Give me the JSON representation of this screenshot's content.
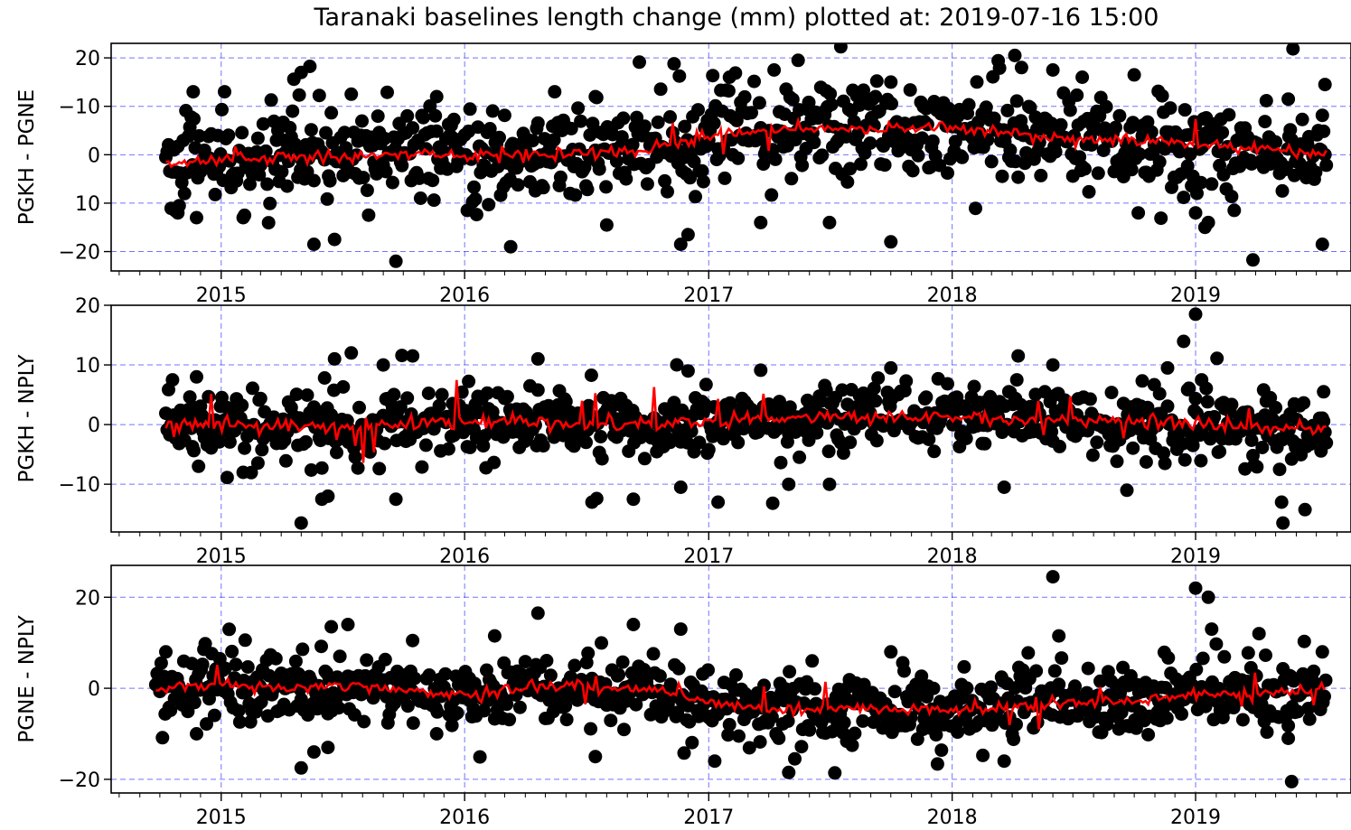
{
  "figure_title": "Taranaki baselines length change (mm) plotted at: 2019-07-16 15:00",
  "colors": {
    "points": "#000000",
    "trend": "#ff0000",
    "grid": "#0000ff",
    "axes": "#000000",
    "background": "#ffffff"
  },
  "chart_data": [
    {
      "type": "scatter",
      "title": "",
      "xlabel": "",
      "ylabel": "PGKH - PGNE",
      "x_tick_labels": [
        "2015",
        "2016",
        "2017",
        "2018",
        "2019"
      ],
      "y_tick_labels": [
        "20",
        "−10",
        "0",
        "10",
        "−20"
      ],
      "y_ticks": [
        20,
        10,
        0,
        -10,
        -20
      ],
      "xlim": [
        "2014-07-20",
        "2019-08-22"
      ],
      "ylim": [
        -24,
        23
      ],
      "grid": true,
      "series": [
        {
          "kind": "points",
          "x_start": "2014-10-10",
          "x_end": "2019-07-16",
          "typical_spread": 4.5,
          "trend": [
            [
              "2014-10-15",
              -1.5
            ],
            [
              "2015-01-01",
              -1.0
            ],
            [
              "2015-04-01",
              -0.5
            ],
            [
              "2015-07-01",
              -0.5
            ],
            [
              "2015-10-01",
              0.0
            ],
            [
              "2016-01-01",
              0.0
            ],
            [
              "2016-04-01",
              0.0
            ],
            [
              "2016-07-01",
              0.5
            ],
            [
              "2016-10-01",
              1.0
            ],
            [
              "2017-01-01",
              4.0
            ],
            [
              "2017-04-01",
              5.0
            ],
            [
              "2017-07-01",
              5.5
            ],
            [
              "2017-10-01",
              5.5
            ],
            [
              "2018-01-01",
              5.5
            ],
            [
              "2018-04-01",
              4.5
            ],
            [
              "2018-07-01",
              3.0
            ],
            [
              "2018-10-01",
              3.0
            ],
            [
              "2019-01-01",
              2.5
            ],
            [
              "2019-04-01",
              1.0
            ],
            [
              "2019-07-16",
              0.0
            ]
          ],
          "outliers": [
            [
              "2014-10-28",
              -12
            ],
            [
              "2014-11-20",
              13
            ],
            [
              "2014-11-25",
              -13
            ],
            [
              "2015-05-01",
              17
            ],
            [
              "2015-05-20",
              -18.5
            ],
            [
              "2015-06-20",
              -17.5
            ],
            [
              "2015-07-15",
              12.5
            ],
            [
              "2015-09-20",
              -22
            ],
            [
              "2015-11-20",
              12
            ],
            [
              "2016-03-10",
              -19
            ],
            [
              "2016-05-15",
              13
            ],
            [
              "2016-07-15",
              12
            ],
            [
              "2016-08-01",
              -14.5
            ],
            [
              "2016-11-20",
              -18.5
            ],
            [
              "2016-12-01",
              -16.5
            ],
            [
              "2017-02-01",
              16
            ],
            [
              "2017-03-20",
              -14
            ],
            [
              "2017-05-15",
              19.5
            ],
            [
              "2017-07-01",
              -14
            ],
            [
              "2017-10-01",
              -18
            ],
            [
              "2017-10-01",
              15
            ],
            [
              "2018-04-05",
              20.5
            ],
            [
              "2018-04-15",
              18
            ],
            [
              "2018-06-01",
              17.5
            ],
            [
              "2018-07-15",
              16
            ],
            [
              "2018-10-01",
              16.5
            ],
            [
              "2019-01-15",
              -15
            ],
            [
              "2019-01-20",
              -14
            ],
            [
              "2019-01-01",
              -12
            ],
            [
              "2019-05-20",
              11.5
            ],
            [
              "2019-07-10",
              -18.5
            ],
            [
              "2019-07-14",
              14.5
            ]
          ]
        }
      ]
    },
    {
      "type": "scatter",
      "title": "",
      "xlabel": "",
      "ylabel": "PGKH - NPLY",
      "x_tick_labels": [
        "2015",
        "2016",
        "2017",
        "2018",
        "2019"
      ],
      "y_tick_labels": [
        "20",
        "10",
        "0",
        "−10"
      ],
      "y_ticks": [
        20,
        10,
        0,
        -10
      ],
      "xlim": [
        "2014-07-20",
        "2019-08-22"
      ],
      "ylim": [
        -18,
        20
      ],
      "grid": true,
      "series": [
        {
          "kind": "points",
          "x_start": "2014-10-10",
          "x_end": "2019-07-16",
          "typical_spread": 2.5,
          "trend": [
            [
              "2014-10-15",
              0.0
            ],
            [
              "2015-01-01",
              0.0
            ],
            [
              "2015-04-01",
              0.0
            ],
            [
              "2015-07-01",
              -0.5
            ],
            [
              "2015-10-01",
              0.0
            ],
            [
              "2016-01-01",
              0.5
            ],
            [
              "2016-04-01",
              0.5
            ],
            [
              "2016-07-01",
              0.0
            ],
            [
              "2016-10-01",
              0.0
            ],
            [
              "2017-01-01",
              0.5
            ],
            [
              "2017-04-01",
              1.0
            ],
            [
              "2017-07-01",
              1.5
            ],
            [
              "2017-10-01",
              1.5
            ],
            [
              "2018-01-01",
              1.5
            ],
            [
              "2018-04-01",
              1.0
            ],
            [
              "2018-07-01",
              0.5
            ],
            [
              "2018-10-01",
              0.5
            ],
            [
              "2019-01-01",
              0.0
            ],
            [
              "2019-04-01",
              -0.5
            ],
            [
              "2019-07-16",
              -0.5
            ]
          ],
          "outliers": [
            [
              "2014-10-20",
              7.5
            ],
            [
              "2014-11-25",
              8
            ],
            [
              "2014-11-28",
              -7
            ],
            [
              "2015-05-01",
              -16.5
            ],
            [
              "2015-06-01",
              -12.5
            ],
            [
              "2015-06-10",
              -12
            ],
            [
              "2015-06-20",
              11
            ],
            [
              "2015-07-15",
              12
            ],
            [
              "2015-09-01",
              10
            ],
            [
              "2015-09-20",
              -12.5
            ],
            [
              "2015-10-15",
              11.5
            ],
            [
              "2016-04-20",
              11
            ],
            [
              "2016-07-10",
              -13
            ],
            [
              "2016-09-10",
              -12.5
            ],
            [
              "2016-11-20",
              -10.5
            ],
            [
              "2016-12-01",
              9
            ],
            [
              "2017-01-15",
              -13
            ],
            [
              "2017-05-01",
              -10
            ],
            [
              "2017-07-01",
              -10
            ],
            [
              "2017-10-01",
              9.5
            ],
            [
              "2018-03-20",
              -10.5
            ],
            [
              "2018-04-10",
              11.5
            ],
            [
              "2018-06-01",
              10
            ],
            [
              "2018-09-20",
              -11
            ],
            [
              "2018-11-20",
              9.5
            ],
            [
              "2019-01-01",
              18.5
            ],
            [
              "2019-01-10",
              7.5
            ],
            [
              "2019-05-10",
              -13
            ],
            [
              "2019-05-12",
              -16.5
            ],
            [
              "2019-07-12",
              5.5
            ]
          ]
        }
      ]
    },
    {
      "type": "scatter",
      "title": "",
      "xlabel": "",
      "ylabel": "PGNE - NPLY",
      "x_tick_labels": [
        "2015",
        "2016",
        "2017",
        "2018",
        "2019"
      ],
      "y_tick_labels": [
        "20",
        "0",
        "−20"
      ],
      "y_ticks": [
        20,
        0,
        -20
      ],
      "xlim": [
        "2014-07-20",
        "2019-08-22"
      ],
      "ylim": [
        -23,
        27
      ],
      "grid": true,
      "series": [
        {
          "kind": "points",
          "x_start": "2014-09-25",
          "x_end": "2019-07-16",
          "typical_spread": 3.5,
          "trend": [
            [
              "2014-10-01",
              0.0
            ],
            [
              "2015-01-01",
              1.0
            ],
            [
              "2015-04-01",
              0.0
            ],
            [
              "2015-07-01",
              0.5
            ],
            [
              "2015-10-01",
              -0.5
            ],
            [
              "2016-01-01",
              -1.5
            ],
            [
              "2016-04-01",
              0.0
            ],
            [
              "2016-07-01",
              0.5
            ],
            [
              "2016-10-01",
              0.0
            ],
            [
              "2017-01-01",
              -3.0
            ],
            [
              "2017-04-01",
              -4.5
            ],
            [
              "2017-07-01",
              -4.5
            ],
            [
              "2017-10-01",
              -4.5
            ],
            [
              "2018-01-01",
              -5.0
            ],
            [
              "2018-04-01",
              -4.0
            ],
            [
              "2018-07-01",
              -3.0
            ],
            [
              "2018-10-01",
              -3.0
            ],
            [
              "2019-01-01",
              -1.0
            ],
            [
              "2019-04-01",
              -1.5
            ],
            [
              "2019-07-16",
              0.0
            ]
          ],
          "outliers": [
            [
              "2014-10-10",
              8
            ],
            [
              "2014-11-25",
              -10
            ],
            [
              "2015-05-01",
              -17.5
            ],
            [
              "2015-05-20",
              -14
            ],
            [
              "2015-06-10",
              -13
            ],
            [
              "2015-06-15",
              13.5
            ],
            [
              "2015-07-10",
              14
            ],
            [
              "2015-10-15",
              10.5
            ],
            [
              "2015-11-20",
              -10
            ],
            [
              "2016-02-15",
              11.5
            ],
            [
              "2016-04-20",
              16.5
            ],
            [
              "2016-07-15",
              -15
            ],
            [
              "2016-09-10",
              14
            ],
            [
              "2016-11-20",
              13
            ],
            [
              "2017-01-10",
              -16
            ],
            [
              "2017-05-01",
              -18.5
            ],
            [
              "2017-05-10",
              -15.5
            ],
            [
              "2017-10-01",
              8
            ],
            [
              "2018-03-20",
              -16
            ],
            [
              "2018-06-01",
              24.5
            ],
            [
              "2018-06-10",
              11.5
            ],
            [
              "2019-01-01",
              22
            ],
            [
              "2019-01-20",
              20
            ],
            [
              "2019-01-25",
              13
            ],
            [
              "2019-05-20",
              -11
            ],
            [
              "2019-05-25",
              -20.5
            ],
            [
              "2019-07-10",
              8
            ]
          ]
        }
      ]
    }
  ]
}
